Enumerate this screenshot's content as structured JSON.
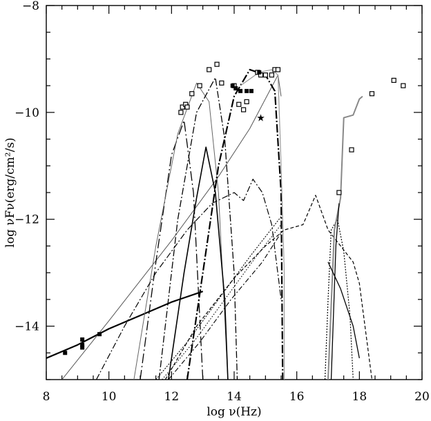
{
  "chart_data": {
    "type": "line",
    "xlabel": "log ν(Hz)",
    "ylabel": "log νFν(erg/cm²/s)",
    "xlim": [
      8,
      20
    ],
    "ylim": [
      -15,
      -8
    ],
    "x_ticks": [
      "8",
      "10",
      "12",
      "14",
      "16",
      "18",
      "20"
    ],
    "y_ticks": [
      "−14",
      "−12",
      "−10",
      "−8"
    ],
    "grid": false,
    "series": [
      {
        "style": "thick-solid",
        "color": "#000000",
        "points": [
          [
            8.0,
            -14.6
          ],
          [
            9.0,
            -14.35
          ],
          [
            10.0,
            -14.05
          ],
          [
            11.0,
            -13.8
          ],
          [
            12.0,
            -13.55
          ],
          [
            13.0,
            -13.35
          ]
        ]
      },
      {
        "style": "thin-solid-diagonal",
        "color": "#555555",
        "points": [
          [
            8.5,
            -15.0
          ],
          [
            10.0,
            -13.9
          ],
          [
            12.0,
            -12.4
          ],
          [
            13.5,
            -11.2
          ],
          [
            14.5,
            -10.3
          ],
          [
            15.4,
            -9.3
          ],
          [
            15.5,
            -9.7
          ]
        ]
      },
      {
        "style": "long-dash-dot",
        "color": "#000000",
        "points": [
          [
            11.0,
            -15.0
          ],
          [
            11.5,
            -12.8
          ],
          [
            12.0,
            -10.8
          ],
          [
            12.4,
            -10.15
          ],
          [
            12.7,
            -11.5
          ],
          [
            13.0,
            -15.0
          ]
        ]
      },
      {
        "style": "thin-solid-peak",
        "color": "#666666",
        "points": [
          [
            10.8,
            -15.0
          ],
          [
            11.5,
            -12.5
          ],
          [
            12.2,
            -10.4
          ],
          [
            12.8,
            -9.45
          ],
          [
            13.2,
            -9.8
          ],
          [
            13.5,
            -11.5
          ],
          [
            13.8,
            -15.0
          ]
        ]
      },
      {
        "style": "dash-dot",
        "color": "#000000",
        "points": [
          [
            11.6,
            -15.0
          ],
          [
            12.2,
            -12.0
          ],
          [
            12.8,
            -10.0
          ],
          [
            13.4,
            -9.35
          ],
          [
            13.7,
            -10.5
          ],
          [
            14.0,
            -13.0
          ],
          [
            14.1,
            -15.0
          ]
        ]
      },
      {
        "style": "solid-peak",
        "color": "#000000",
        "points": [
          [
            11.9,
            -15.0
          ],
          [
            12.4,
            -13.0
          ],
          [
            12.8,
            -11.6
          ],
          [
            13.1,
            -10.65
          ],
          [
            13.4,
            -11.5
          ],
          [
            13.7,
            -13.5
          ],
          [
            13.8,
            -15.0
          ]
        ]
      },
      {
        "style": "heavy-dash-dot",
        "color": "#000000",
        "points": [
          [
            12.5,
            -15.0
          ],
          [
            13.0,
            -13.0
          ],
          [
            13.5,
            -11.0
          ],
          [
            14.0,
            -9.7
          ],
          [
            14.5,
            -9.2
          ],
          [
            15.0,
            -9.3
          ],
          [
            15.3,
            -9.6
          ],
          [
            15.5,
            -11.5
          ],
          [
            15.55,
            -15.0
          ]
        ]
      },
      {
        "style": "grey-peak",
        "color": "#999999",
        "points": [
          [
            14.2,
            -9.5
          ],
          [
            14.8,
            -9.25
          ],
          [
            15.2,
            -9.2
          ],
          [
            15.4,
            -9.3
          ],
          [
            15.5,
            -11.0
          ],
          [
            15.6,
            -13.0
          ],
          [
            15.6,
            -15.0
          ]
        ]
      },
      {
        "style": "dash-dot-broad",
        "color": "#000000",
        "points": [
          [
            9.6,
            -15.0
          ],
          [
            10.5,
            -14.0
          ],
          [
            11.5,
            -13.0
          ],
          [
            12.5,
            -12.2
          ],
          [
            13.3,
            -11.7
          ],
          [
            14.0,
            -11.5
          ],
          [
            14.3,
            -11.65
          ],
          [
            14.6,
            -11.25
          ],
          [
            14.9,
            -11.5
          ],
          [
            15.2,
            -12.1
          ],
          [
            15.5,
            -13.5
          ]
        ]
      },
      {
        "style": "dashed-xray",
        "color": "#000000",
        "points": [
          [
            11.8,
            -15.0
          ],
          [
            12.8,
            -14.0
          ],
          [
            14.0,
            -13.1
          ],
          [
            15.0,
            -12.5
          ],
          [
            15.6,
            -12.2
          ],
          [
            16.2,
            -12.1
          ],
          [
            16.6,
            -11.55
          ],
          [
            17.0,
            -12.2
          ],
          [
            17.4,
            -12.5
          ],
          [
            17.8,
            -12.8
          ],
          [
            18.0,
            -13.2
          ],
          [
            18.4,
            -15.0
          ]
        ]
      },
      {
        "style": "dotted-1",
        "color": "#000000",
        "points": [
          [
            11.5,
            -15.0
          ],
          [
            12.5,
            -14.3
          ],
          [
            13.5,
            -13.5
          ],
          [
            14.5,
            -12.7
          ],
          [
            15.5,
            -11.95
          ]
        ]
      },
      {
        "style": "dotted-2",
        "color": "#000000",
        "points": [
          [
            11.7,
            -15.0
          ],
          [
            12.7,
            -14.3
          ],
          [
            13.7,
            -13.5
          ],
          [
            14.7,
            -12.7
          ],
          [
            15.5,
            -12.1
          ]
        ]
      },
      {
        "style": "dash-dot-parallel",
        "color": "#000000",
        "points": [
          [
            11.9,
            -15.0
          ],
          [
            12.9,
            -14.3
          ],
          [
            13.9,
            -13.5
          ],
          [
            14.9,
            -12.8
          ],
          [
            15.5,
            -12.25
          ]
        ]
      },
      {
        "style": "xray-dotted",
        "color": "#000000",
        "points": [
          [
            16.9,
            -15.0
          ],
          [
            17.0,
            -13.5
          ],
          [
            17.1,
            -12.2
          ],
          [
            17.3,
            -12.0
          ],
          [
            17.5,
            -12.6
          ],
          [
            17.7,
            -13.8
          ],
          [
            17.8,
            -15.0
          ]
        ]
      },
      {
        "style": "xray-grey-rise",
        "color": "#888888",
        "points": [
          [
            17.0,
            -15.0
          ],
          [
            17.2,
            -12.2
          ],
          [
            17.4,
            -11.6
          ],
          [
            17.5,
            -10.1
          ],
          [
            17.8,
            -10.05
          ],
          [
            18.0,
            -9.75
          ],
          [
            18.1,
            -9.7
          ]
        ]
      },
      {
        "style": "xray-solid",
        "color": "#000000",
        "points": [
          [
            17.0,
            -12.8
          ],
          [
            17.4,
            -13.3
          ],
          [
            17.8,
            -14.0
          ],
          [
            18.0,
            -14.6
          ]
        ]
      },
      {
        "style": "xray-solid-steep",
        "color": "#000000",
        "points": [
          [
            17.1,
            -15.0
          ],
          [
            17.25,
            -12.5
          ],
          [
            17.35,
            -11.7
          ]
        ]
      }
    ],
    "open_squares": [
      [
        12.3,
        -10.0
      ],
      [
        12.35,
        -9.9
      ],
      [
        12.45,
        -9.85
      ],
      [
        12.5,
        -9.9
      ],
      [
        12.65,
        -9.65
      ],
      [
        12.9,
        -9.5
      ],
      [
        13.2,
        -9.2
      ],
      [
        13.45,
        -9.1
      ],
      [
        13.6,
        -9.45
      ],
      [
        14.0,
        -9.5
      ],
      [
        14.15,
        -9.85
      ],
      [
        14.3,
        -9.95
      ],
      [
        14.4,
        -9.8
      ],
      [
        14.75,
        -9.25
      ],
      [
        14.85,
        -9.3
      ],
      [
        15.0,
        -9.3
      ],
      [
        15.2,
        -9.3
      ],
      [
        15.3,
        -9.2
      ],
      [
        15.4,
        -9.2
      ],
      [
        17.35,
        -11.5
      ],
      [
        17.75,
        -10.7
      ],
      [
        18.4,
        -9.65
      ],
      [
        19.1,
        -9.4
      ],
      [
        19.4,
        -9.5
      ]
    ],
    "filled_squares": [
      [
        8.6,
        -14.5
      ],
      [
        9.15,
        -14.25
      ],
      [
        9.15,
        -14.35
      ],
      [
        9.15,
        -14.4
      ],
      [
        9.7,
        -14.15
      ],
      [
        13.95,
        -9.5
      ],
      [
        14.05,
        -9.55
      ],
      [
        14.2,
        -9.6
      ],
      [
        14.4,
        -9.6
      ],
      [
        14.55,
        -9.6
      ],
      [
        14.8,
        -9.25
      ]
    ],
    "stars": [
      [
        14.85,
        -10.1
      ]
    ]
  }
}
